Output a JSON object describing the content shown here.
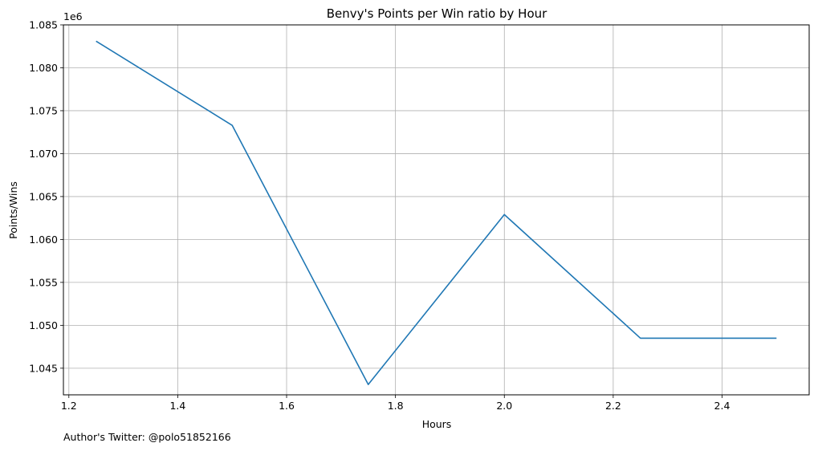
{
  "chart_data": {
    "type": "line",
    "title": "Benvy's Points per Win ratio by Hour",
    "xlabel": "Hours",
    "ylabel": "Points/Wins",
    "y_offset_label": "1e6",
    "grid": true,
    "xlim": [
      1.19,
      2.56
    ],
    "ylim": [
      1.0419,
      1.085
    ],
    "x_ticks": [
      1.2,
      1.4,
      1.6,
      1.8,
      2.0,
      2.2,
      2.4
    ],
    "x_tick_labels": [
      "1.2",
      "1.4",
      "1.6",
      "1.8",
      "2.0",
      "2.2",
      "2.4"
    ],
    "y_ticks": [
      1.045,
      1.05,
      1.055,
      1.06,
      1.065,
      1.07,
      1.075,
      1.08,
      1.085
    ],
    "y_tick_labels": [
      "1.045",
      "1.050",
      "1.055",
      "1.060",
      "1.065",
      "1.070",
      "1.075",
      "1.080",
      "1.085"
    ],
    "series": [
      {
        "color": "#1f77b4",
        "x": [
          1.25,
          1.5,
          1.75,
          2.0,
          2.25,
          2.5
        ],
        "y": [
          1.0831,
          1.0733,
          1.0431,
          1.0629,
          1.0485,
          1.0485
        ]
      }
    ]
  },
  "footnote": "Author's Twitter: @polo51852166"
}
